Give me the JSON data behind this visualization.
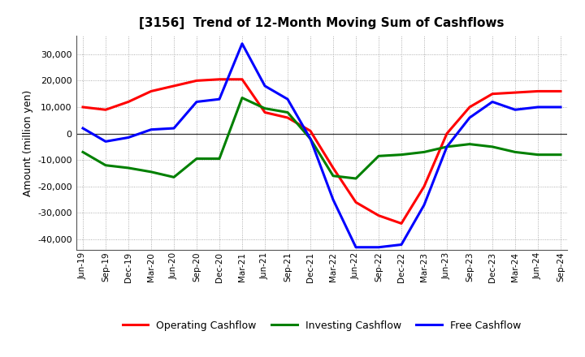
{
  "title": "[3156]  Trend of 12-Month Moving Sum of Cashflows",
  "ylabel": "Amount (million yen)",
  "xlabels": [
    "Jun-19",
    "Sep-19",
    "Dec-19",
    "Mar-20",
    "Jun-20",
    "Sep-20",
    "Dec-20",
    "Mar-21",
    "Jun-21",
    "Sep-21",
    "Dec-21",
    "Mar-22",
    "Jun-22",
    "Sep-22",
    "Dec-22",
    "Mar-23",
    "Jun-23",
    "Sep-23",
    "Dec-23",
    "Mar-24",
    "Jun-24",
    "Sep-24"
  ],
  "operating": [
    10000,
    9000,
    12000,
    16000,
    18000,
    20000,
    20500,
    20500,
    8000,
    6000,
    1000,
    -13000,
    -26000,
    -31000,
    -34000,
    -20000,
    0,
    10000,
    15000,
    15500,
    16000,
    16000
  ],
  "investing": [
    -7000,
    -12000,
    -13000,
    -14500,
    -16500,
    -9500,
    -9500,
    13500,
    9500,
    8000,
    -2000,
    -16000,
    -17000,
    -8500,
    -8000,
    -7000,
    -5000,
    -4000,
    -5000,
    -7000,
    -8000,
    -8000
  ],
  "free": [
    2000,
    -3000,
    -1500,
    1500,
    2000,
    12000,
    13000,
    34000,
    18000,
    13000,
    -2000,
    -25000,
    -43000,
    -43000,
    -42000,
    -27000,
    -5000,
    6000,
    12000,
    9000,
    10000,
    10000
  ],
  "ylim": [
    -44000,
    37000
  ],
  "yticks": [
    -40000,
    -30000,
    -20000,
    -10000,
    0,
    10000,
    20000,
    30000
  ],
  "operating_color": "#ff0000",
  "investing_color": "#008000",
  "free_color": "#0000ff",
  "bg_color": "#ffffff",
  "plot_bg_color": "#ffffff",
  "grid_color": "#999999",
  "linewidth": 2.2
}
